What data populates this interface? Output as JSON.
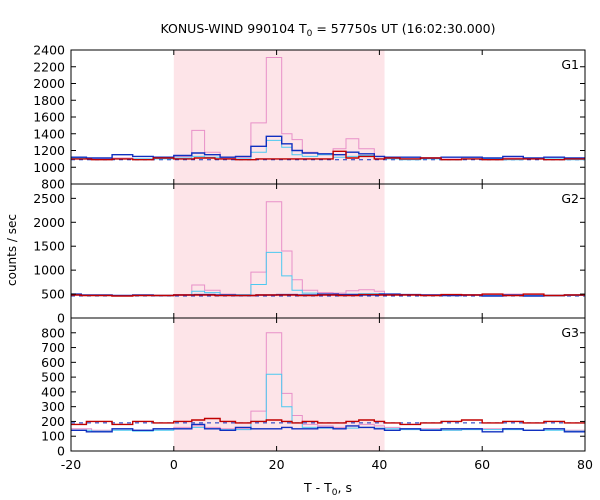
{
  "chart_data": {
    "type": "line",
    "title_main": "KONUS-WIND 990104 T",
    "title_sub": "0",
    "title_rest": " = 57750s UT (16:02:30.000)",
    "xlabel_main": "T - T",
    "xlabel_sub": "0",
    "xlabel_rest": ", s",
    "ylabel": "counts / sec",
    "xlim": [
      -20,
      80
    ],
    "xticks": [
      -20,
      0,
      20,
      40,
      60,
      80
    ],
    "shaded_interval": [
      0,
      41
    ],
    "colors": {
      "pink": "#e890c8",
      "cyan": "#4cc8f0",
      "blue": "#1030c0",
      "red": "#c00000",
      "dashed_background": "#1030c0",
      "shade": "#fde4e8"
    },
    "panels": [
      {
        "name": "G1",
        "ylim": [
          800,
          2400
        ],
        "yticks": [
          800,
          1000,
          1200,
          1400,
          1600,
          1800,
          2000,
          2200,
          2400
        ],
        "background_level": 1090,
        "series": [
          {
            "color": "pink",
            "x": [
              -20,
              -12,
              -8,
              -4,
              0,
              3.5,
              6,
              9,
              12,
              15,
              18,
              21,
              23,
              25,
              28,
              31,
              33.5,
              36,
              39,
              41,
              44,
              48,
              52,
              56,
              60,
              64,
              68,
              72,
              76,
              80
            ],
            "y": [
              1100,
              1110,
              1100,
              1110,
              1130,
              1440,
              1180,
              1110,
              1120,
              1530,
              2310,
              1400,
              1330,
              1180,
              1150,
              1220,
              1340,
              1220,
              1130,
              1110,
              1100,
              1110,
              1100,
              1120,
              1110,
              1110,
              1100,
              1120,
              1100,
              1080
            ]
          },
          {
            "color": "cyan",
            "x": [
              -20,
              -12,
              -8,
              -4,
              0,
              3.5,
              6,
              9,
              12,
              15,
              18,
              21,
              23,
              25,
              28,
              31,
              33.5,
              36,
              39,
              41,
              44,
              48,
              52,
              56,
              60,
              64,
              68,
              72,
              76,
              80
            ],
            "y": [
              1110,
              1100,
              1100,
              1100,
              1110,
              1130,
              1120,
              1100,
              1100,
              1180,
              1320,
              1240,
              1150,
              1130,
              1150,
              1120,
              1130,
              1140,
              1100,
              1100,
              1090,
              1100,
              1090,
              1100,
              1100,
              1090,
              1100,
              1100,
              1090,
              1080
            ]
          },
          {
            "color": "blue",
            "x": [
              -20,
              -17,
              -12,
              -8,
              -4,
              0,
              3.5,
              6,
              9,
              12,
              15,
              18,
              21,
              23,
              25,
              28,
              31,
              33.5,
              36,
              39,
              41,
              44,
              48,
              52,
              56,
              60,
              64,
              68,
              72,
              76,
              80
            ],
            "y": [
              1120,
              1110,
              1150,
              1130,
              1120,
              1140,
              1170,
              1150,
              1120,
              1130,
              1250,
              1370,
              1280,
              1200,
              1170,
              1160,
              1150,
              1180,
              1160,
              1130,
              1120,
              1120,
              1110,
              1120,
              1120,
              1110,
              1130,
              1110,
              1120,
              1110,
              1090
            ]
          },
          {
            "color": "red",
            "x": [
              -20,
              -16,
              -12,
              -8,
              -4,
              0,
              4,
              8,
              12,
              16,
              20,
              24,
              28,
              31,
              33.5,
              36,
              39,
              41,
              44,
              48,
              52,
              56,
              60,
              64,
              68,
              72,
              76,
              80
            ],
            "y": [
              1100,
              1090,
              1100,
              1090,
              1110,
              1100,
              1110,
              1100,
              1090,
              1100,
              1100,
              1100,
              1100,
              1190,
              1110,
              1130,
              1100,
              1110,
              1100,
              1110,
              1090,
              1100,
              1090,
              1100,
              1100,
              1090,
              1100,
              1080
            ]
          }
        ]
      },
      {
        "name": "G2",
        "ylim": [
          0,
          2800
        ],
        "yticks": [
          0,
          500,
          1000,
          1500,
          2000,
          2500
        ],
        "background_level": 460,
        "series": [
          {
            "color": "pink",
            "x": [
              -20,
              -18,
              -12,
              -8,
              -4,
              0,
              3.5,
              6,
              9,
              12,
              15,
              18,
              21,
              23,
              25,
              28,
              31,
              33.5,
              36,
              39,
              41,
              44,
              48,
              52,
              56,
              60,
              64,
              68,
              72,
              76,
              80
            ],
            "y": [
              490,
              470,
              460,
              480,
              470,
              490,
              690,
              580,
              500,
              490,
              960,
              2430,
              1400,
              800,
              580,
              530,
              520,
              570,
              590,
              560,
              500,
              490,
              490,
              480,
              490,
              480,
              500,
              480,
              470,
              480,
              470
            ]
          },
          {
            "color": "cyan",
            "x": [
              -20,
              -18,
              -12,
              -8,
              -4,
              0,
              3.5,
              6,
              9,
              12,
              15,
              18,
              21,
              23,
              25,
              28,
              31,
              33.5,
              36,
              39,
              41,
              44,
              48,
              52,
              56,
              60,
              64,
              68,
              72,
              76,
              80
            ],
            "y": [
              480,
              470,
              460,
              470,
              470,
              480,
              560,
              530,
              490,
              490,
              700,
              1370,
              880,
              580,
              520,
              500,
              490,
              500,
              510,
              510,
              490,
              480,
              480,
              470,
              480,
              470,
              480,
              470,
              460,
              470,
              460
            ]
          },
          {
            "color": "blue",
            "x": [
              -20,
              -18,
              -12,
              -8,
              -4,
              0,
              4,
              8,
              12,
              16,
              20,
              24,
              28,
              32,
              36,
              40,
              44,
              48,
              52,
              56,
              60,
              64,
              68,
              72,
              76,
              80
            ],
            "y": [
              500,
              480,
              470,
              480,
              470,
              480,
              490,
              480,
              470,
              480,
              490,
              480,
              500,
              490,
              480,
              500,
              490,
              480,
              470,
              480,
              460,
              480,
              460,
              470,
              480,
              470
            ]
          },
          {
            "color": "red",
            "x": [
              -20,
              -18,
              -12,
              -8,
              -4,
              0,
              4,
              8,
              12,
              16,
              20,
              24,
              28,
              32,
              36,
              40,
              44,
              48,
              52,
              56,
              60,
              64,
              68,
              72,
              76,
              80
            ],
            "y": [
              480,
              470,
              460,
              470,
              470,
              480,
              480,
              470,
              470,
              480,
              480,
              470,
              480,
              470,
              490,
              480,
              480,
              470,
              490,
              480,
              500,
              470,
              500,
              470,
              480,
              470
            ]
          }
        ]
      },
      {
        "name": "G3",
        "ylim": [
          0,
          900
        ],
        "yticks": [
          0,
          100,
          200,
          300,
          400,
          500,
          600,
          700,
          800
        ],
        "background_level": 190,
        "series": [
          {
            "color": "pink",
            "x": [
              -20,
              -16,
              -12,
              -8,
              -4,
              0,
              3.5,
              6,
              9,
              12,
              15,
              18,
              21,
              23,
              25,
              28,
              31,
              33.5,
              36,
              39,
              41,
              44,
              48,
              52,
              56,
              60,
              64,
              68,
              72,
              76,
              80
            ],
            "y": [
              150,
              140,
              150,
              140,
              150,
              160,
              170,
              160,
              150,
              150,
              270,
              800,
              390,
              240,
              180,
              170,
              160,
              170,
              180,
              170,
              160,
              150,
              150,
              140,
              150,
              150,
              150,
              140,
              150,
              140,
              150
            ]
          },
          {
            "color": "cyan",
            "x": [
              -20,
              -16,
              -12,
              -8,
              -4,
              0,
              3.5,
              6,
              9,
              12,
              15,
              18,
              21,
              23,
              25,
              28,
              31,
              33.5,
              36,
              39,
              41,
              44,
              48,
              52,
              56,
              60,
              64,
              68,
              72,
              76,
              80
            ],
            "y": [
              140,
              135,
              140,
              135,
              140,
              150,
              160,
              150,
              145,
              145,
              200,
              520,
              300,
              190,
              160,
              155,
              150,
              155,
              160,
              155,
              150,
              145,
              145,
              140,
              145,
              145,
              145,
              140,
              140,
              135,
              140
            ]
          },
          {
            "color": "blue",
            "x": [
              -20,
              -17,
              -12,
              -8,
              -4,
              0,
              3.5,
              6,
              9,
              12,
              15,
              18,
              21,
              23,
              25,
              28,
              31,
              33.5,
              36,
              39,
              41,
              44,
              48,
              52,
              56,
              60,
              64,
              68,
              72,
              76,
              80
            ],
            "y": [
              140,
              130,
              150,
              140,
              150,
              150,
              180,
              150,
              140,
              160,
              150,
              150,
              160,
              150,
              150,
              160,
              150,
              170,
              160,
              150,
              140,
              150,
              140,
              150,
              150,
              130,
              150,
              140,
              150,
              130,
              140
            ]
          },
          {
            "color": "red",
            "x": [
              -20,
              -17,
              -12,
              -8,
              -4,
              0,
              3.5,
              6,
              9,
              12,
              15,
              18,
              21,
              23,
              25,
              28,
              31,
              33.5,
              36,
              39,
              41,
              44,
              48,
              52,
              56,
              60,
              64,
              68,
              72,
              76,
              80
            ],
            "y": [
              180,
              200,
              180,
              200,
              190,
              200,
              210,
              220,
              200,
              190,
              200,
              210,
              200,
              190,
              200,
              190,
              190,
              200,
              210,
              200,
              190,
              180,
              190,
              200,
              210,
              190,
              200,
              190,
              200,
              190,
              180
            ]
          }
        ]
      }
    ]
  }
}
